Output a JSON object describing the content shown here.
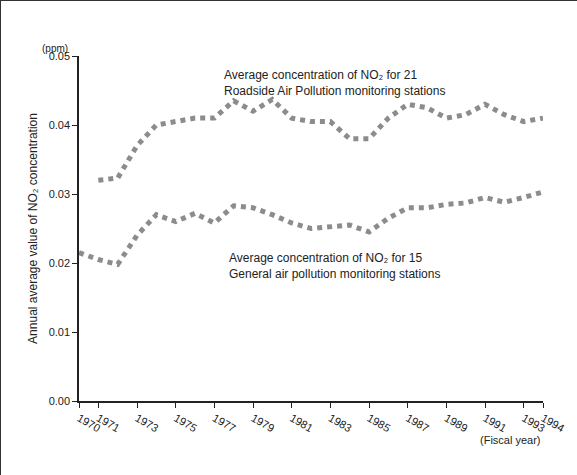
{
  "chart_data": {
    "type": "line",
    "y_label": "Annual average value of NO₂ concentration",
    "x_label": "(Fiscal year)",
    "annotations": [
      {
        "text": "(ppm)"
      }
    ],
    "x": [
      1970,
      1971,
      1972,
      1973,
      1974,
      1975,
      1976,
      1977,
      1978,
      1979,
      1980,
      1981,
      1982,
      1983,
      1984,
      1985,
      1986,
      1987,
      1988,
      1989,
      1990,
      1991,
      1992,
      1993,
      1994
    ],
    "series": [
      {
        "name": "Average concentration of NO₂ for 21\nRoadside Air Pollution monitoring stations",
        "color": "#8c8c8c",
        "line_style": "dotted",
        "values": [
          null,
          0.032,
          0.0323,
          0.037,
          0.04,
          0.0405,
          0.041,
          0.041,
          0.0435,
          0.042,
          0.0437,
          0.041,
          0.0405,
          0.0405,
          0.038,
          0.038,
          0.041,
          0.043,
          0.0425,
          0.041,
          0.0415,
          0.043,
          0.0415,
          0.0405,
          0.041
        ]
      },
      {
        "name": "Average concentration of NO₂ for 15\nGeneral air pollution monitoring stations",
        "color": "#8c8c8c",
        "line_style": "dotted",
        "values": [
          0.0215,
          0.0205,
          0.0198,
          0.024,
          0.027,
          0.026,
          0.0272,
          0.0258,
          0.0283,
          0.028,
          0.027,
          0.0258,
          0.025,
          0.0252,
          0.0255,
          0.0245,
          0.0265,
          0.028,
          0.028,
          0.0285,
          0.0287,
          0.0295,
          0.0288,
          0.0295,
          0.0303
        ]
      }
    ],
    "xlim": [
      1970,
      1994
    ],
    "xticks": [
      1970,
      1971,
      1973,
      1975,
      1977,
      1979,
      1981,
      1983,
      1985,
      1987,
      1989,
      1991,
      1993,
      1994
    ],
    "ylim": [
      0,
      0.05
    ],
    "yticks": [
      {
        "value": 0,
        "label": "0.00"
      },
      0.01,
      0.02,
      0.03,
      0.04,
      0.05
    ],
    "grid": false
  }
}
